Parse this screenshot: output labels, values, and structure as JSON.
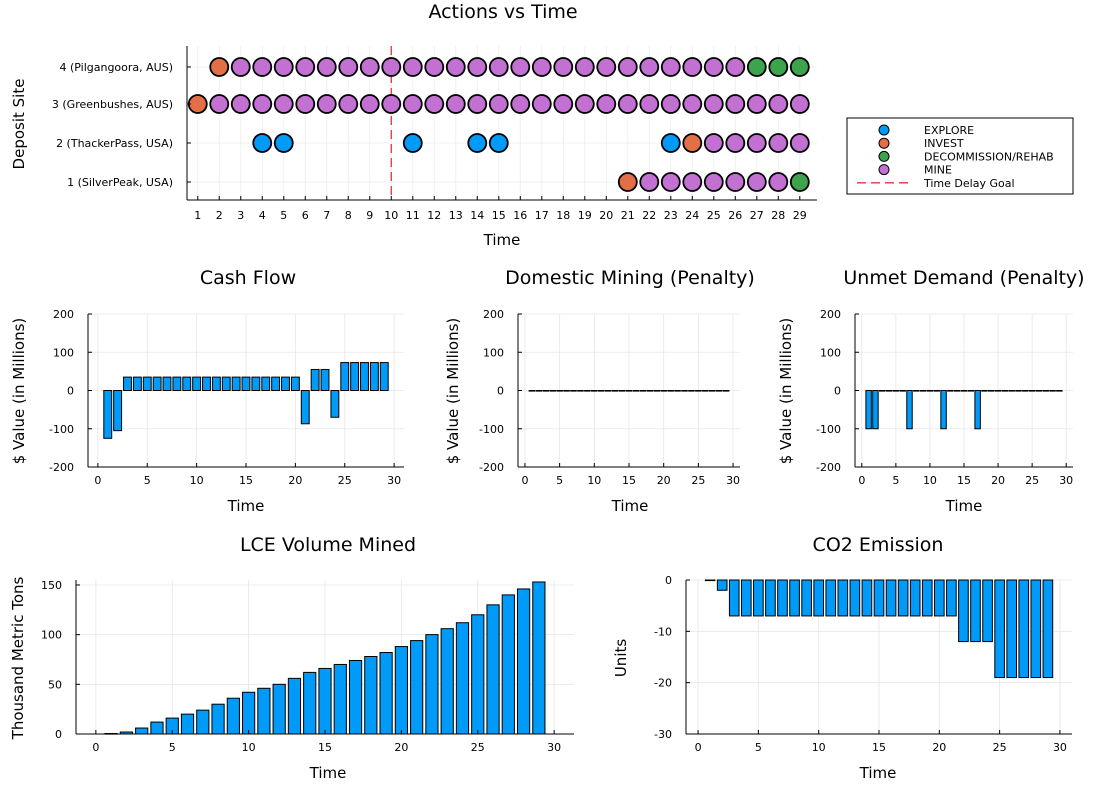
{
  "chart_data": [
    {
      "id": "actions",
      "type": "scatter",
      "title": "Actions vs Time",
      "xlabel": "Time",
      "ylabel": "Deposit Site",
      "xlim": [
        0.5,
        29.8
      ],
      "x_ticks": [
        1,
        2,
        3,
        4,
        5,
        6,
        7,
        8,
        9,
        10,
        11,
        12,
        13,
        14,
        15,
        16,
        17,
        18,
        19,
        20,
        21,
        22,
        23,
        24,
        25,
        26,
        27,
        28,
        29
      ],
      "y_categories": [
        "1 (SilverPeak, USA)",
        "2 (ThackerPass, USA)",
        "3 (Greenbushes, AUS)",
        "4 (Pilgangoora, AUS)"
      ],
      "time_delay_goal": 10,
      "legend_position": "right",
      "series": [
        {
          "name": "EXPLORE",
          "color": "#009af9",
          "points": [
            [
              4,
              2
            ],
            [
              5,
              2
            ],
            [
              11,
              2
            ],
            [
              14,
              2
            ],
            [
              15,
              2
            ],
            [
              23,
              2
            ]
          ]
        },
        {
          "name": "INVEST",
          "color": "#e26f46",
          "points": [
            [
              2,
              4
            ],
            [
              1,
              3
            ],
            [
              24,
              2
            ],
            [
              21,
              1
            ]
          ]
        },
        {
          "name": "DECOMMISSION/REHAB",
          "color": "#3da44d",
          "points": [
            [
              27,
              4
            ],
            [
              28,
              4
            ],
            [
              29,
              4
            ],
            [
              29,
              1
            ]
          ]
        },
        {
          "name": "MINE",
          "color": "#c271d2",
          "points": [
            [
              3,
              4
            ],
            [
              4,
              4
            ],
            [
              5,
              4
            ],
            [
              6,
              4
            ],
            [
              7,
              4
            ],
            [
              8,
              4
            ],
            [
              9,
              4
            ],
            [
              10,
              4
            ],
            [
              11,
              4
            ],
            [
              12,
              4
            ],
            [
              13,
              4
            ],
            [
              14,
              4
            ],
            [
              15,
              4
            ],
            [
              16,
              4
            ],
            [
              17,
              4
            ],
            [
              18,
              4
            ],
            [
              19,
              4
            ],
            [
              20,
              4
            ],
            [
              21,
              4
            ],
            [
              22,
              4
            ],
            [
              23,
              4
            ],
            [
              24,
              4
            ],
            [
              25,
              4
            ],
            [
              26,
              4
            ],
            [
              2,
              3
            ],
            [
              3,
              3
            ],
            [
              4,
              3
            ],
            [
              5,
              3
            ],
            [
              6,
              3
            ],
            [
              7,
              3
            ],
            [
              8,
              3
            ],
            [
              9,
              3
            ],
            [
              10,
              3
            ],
            [
              11,
              3
            ],
            [
              12,
              3
            ],
            [
              13,
              3
            ],
            [
              14,
              3
            ],
            [
              15,
              3
            ],
            [
              16,
              3
            ],
            [
              17,
              3
            ],
            [
              18,
              3
            ],
            [
              19,
              3
            ],
            [
              20,
              3
            ],
            [
              21,
              3
            ],
            [
              22,
              3
            ],
            [
              23,
              3
            ],
            [
              24,
              3
            ],
            [
              25,
              3
            ],
            [
              26,
              3
            ],
            [
              27,
              3
            ],
            [
              28,
              3
            ],
            [
              29,
              3
            ],
            [
              25,
              2
            ],
            [
              26,
              2
            ],
            [
              27,
              2
            ],
            [
              28,
              2
            ],
            [
              29,
              2
            ],
            [
              22,
              1
            ],
            [
              23,
              1
            ],
            [
              24,
              1
            ],
            [
              25,
              1
            ],
            [
              26,
              1
            ],
            [
              27,
              1
            ],
            [
              28,
              1
            ]
          ]
        },
        {
          "name": "Time Delay Goal",
          "color": "#e8313b",
          "style": "dashed"
        }
      ]
    },
    {
      "id": "cash",
      "type": "bar",
      "title": "Cash Flow",
      "xlabel": "Time",
      "ylabel": "$ Value (in Millions)",
      "xlim": [
        -1,
        31
      ],
      "ylim": [
        -200,
        200
      ],
      "x_ticks": [
        0,
        5,
        10,
        15,
        20,
        25,
        30
      ],
      "y_ticks": [
        -200,
        -100,
        0,
        100,
        200
      ],
      "color": "#009af9",
      "x": [
        1,
        2,
        3,
        4,
        5,
        6,
        7,
        8,
        9,
        10,
        11,
        12,
        13,
        14,
        15,
        16,
        17,
        18,
        19,
        20,
        21,
        22,
        23,
        24,
        25,
        26,
        27,
        28,
        29
      ],
      "values": [
        -125,
        -105,
        35,
        35,
        35,
        35,
        35,
        35,
        35,
        35,
        35,
        35,
        35,
        35,
        35,
        35,
        35,
        35,
        35,
        35,
        -87,
        55,
        55,
        -70,
        73,
        73,
        73,
        73,
        73
      ]
    },
    {
      "id": "domestic",
      "type": "bar",
      "title": "Domestic Mining (Penalty)",
      "xlabel": "Time",
      "ylabel": "$ Value (in Millions)",
      "xlim": [
        -1,
        31
      ],
      "ylim": [
        -200,
        200
      ],
      "x_ticks": [
        0,
        5,
        10,
        15,
        20,
        25,
        30
      ],
      "y_ticks": [
        -200,
        -100,
        0,
        100,
        200
      ],
      "color": "#009af9",
      "x": [
        1,
        2,
        3,
        4,
        5,
        6,
        7,
        8,
        9,
        10,
        11,
        12,
        13,
        14,
        15,
        16,
        17,
        18,
        19,
        20,
        21,
        22,
        23,
        24,
        25,
        26,
        27,
        28,
        29
      ],
      "values": [
        0,
        0,
        0,
        0,
        0,
        0,
        0,
        0,
        0,
        0,
        0,
        0,
        0,
        0,
        0,
        0,
        0,
        0,
        0,
        0,
        0,
        0,
        0,
        0,
        0,
        0,
        0,
        0,
        0
      ]
    },
    {
      "id": "unmet",
      "type": "bar",
      "title": "Unmet Demand (Penalty)",
      "xlabel": "Time",
      "ylabel": "$ Value (in Millions)",
      "xlim": [
        -1,
        31
      ],
      "ylim": [
        -200,
        200
      ],
      "x_ticks": [
        0,
        5,
        10,
        15,
        20,
        25,
        30
      ],
      "y_ticks": [
        -200,
        -100,
        0,
        100,
        200
      ],
      "color": "#009af9",
      "x": [
        1,
        2,
        3,
        4,
        5,
        6,
        7,
        8,
        9,
        10,
        11,
        12,
        13,
        14,
        15,
        16,
        17,
        18,
        19,
        20,
        21,
        22,
        23,
        24,
        25,
        26,
        27,
        28,
        29
      ],
      "values": [
        -100,
        -100,
        0,
        0,
        0,
        0,
        -100,
        0,
        0,
        0,
        0,
        -100,
        0,
        0,
        0,
        0,
        -100,
        0,
        0,
        0,
        0,
        0,
        0,
        0,
        0,
        0,
        0,
        0,
        0
      ]
    },
    {
      "id": "lce",
      "type": "bar",
      "title": "LCE Volume Mined",
      "xlabel": "Time",
      "ylabel": "Thousand Metric Tons",
      "xlim": [
        -1.3,
        31.3
      ],
      "ylim": [
        0,
        155
      ],
      "x_ticks": [
        0,
        5,
        10,
        15,
        20,
        25,
        30
      ],
      "y_ticks": [
        0,
        50,
        100,
        150
      ],
      "color": "#009af9",
      "x": [
        1,
        2,
        3,
        4,
        5,
        6,
        7,
        8,
        9,
        10,
        11,
        12,
        13,
        14,
        15,
        16,
        17,
        18,
        19,
        20,
        21,
        22,
        23,
        24,
        25,
        26,
        27,
        28,
        29
      ],
      "values": [
        0.5,
        2,
        6,
        12,
        16,
        20,
        24,
        30,
        36,
        42,
        46,
        50,
        56,
        62,
        66,
        70,
        74,
        78,
        82,
        88,
        94,
        100,
        106,
        112,
        120,
        130,
        140,
        146,
        153
      ]
    },
    {
      "id": "co2",
      "type": "bar",
      "title": "CO2 Emission",
      "xlabel": "Time",
      "ylabel": "Units",
      "xlim": [
        -1,
        31
      ],
      "ylim": [
        -30,
        0
      ],
      "x_ticks": [
        0,
        5,
        10,
        15,
        20,
        25,
        30
      ],
      "y_ticks": [
        -30,
        -20,
        -10,
        0
      ],
      "color": "#009af9",
      "x": [
        1,
        2,
        3,
        4,
        5,
        6,
        7,
        8,
        9,
        10,
        11,
        12,
        13,
        14,
        15,
        16,
        17,
        18,
        19,
        20,
        21,
        22,
        23,
        24,
        25,
        26,
        27,
        28,
        29
      ],
      "values": [
        0,
        -2,
        -7,
        -7,
        -7,
        -7,
        -7,
        -7,
        -7,
        -7,
        -7,
        -7,
        -7,
        -7,
        -7,
        -7,
        -7,
        -7,
        -7,
        -7,
        -7,
        -12,
        -12,
        -12,
        -19,
        -19,
        -19,
        -19,
        -19
      ]
    }
  ]
}
